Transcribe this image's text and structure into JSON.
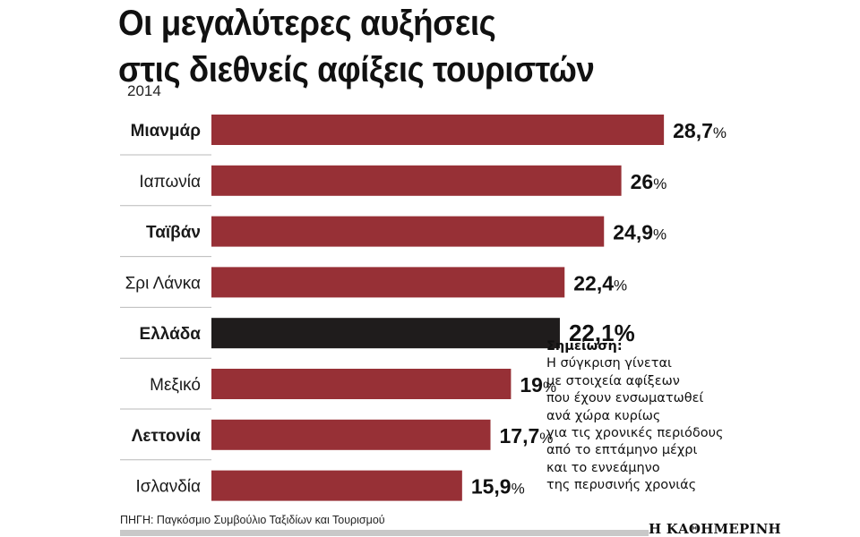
{
  "title_lines": [
    "Οι μεγαλύτερες αυξήσεις",
    "στις διεθνείς αφίξεις τουριστών"
  ],
  "subtitle": "2014",
  "chart_data": {
    "type": "bar",
    "orientation": "horizontal",
    "categories": [
      "Μιανμάρ",
      "Ιαπωνία",
      "Ταϊβάν",
      "Σρι Λάνκα",
      "Ελλάδα",
      "Μεξικό",
      "Λεττονία",
      "Ισλανδία"
    ],
    "values": [
      28.7,
      26,
      24.9,
      22.4,
      22.1,
      19,
      17.7,
      15.9
    ],
    "value_labels": [
      "28,7",
      "26",
      "24,9",
      "22,4",
      "22,1",
      "19",
      "17,7",
      "15,9"
    ],
    "unit": "%",
    "bold_categories": [
      "Μιανμάρ",
      "Ταϊβάν",
      "Ελλάδα",
      "Λεττονία"
    ],
    "highlight_category": "Ελλάδα",
    "bar_color": "#973036",
    "highlight_color": "#1f1c1c",
    "separator_color": "#b9b9b9",
    "title": "Οι μεγαλύτερες αυξήσεις στις διεθνείς αφίξεις τουριστών",
    "xlabel": "",
    "ylabel": ""
  },
  "note": {
    "heading": "Σημείωση:",
    "lines": [
      "Η σύγκριση γίνεται",
      "με στοιχεία αφίξεων",
      "που έχουν ενσωματωθεί",
      "ανά χώρα κυρίως",
      "για τις χρονικές περιόδους",
      "από το επτάμηνο μέχρι",
      "και το εννεάμηνο",
      "της περυσινής χρονιάς"
    ]
  },
  "source": "ΠΗΓΗ: Παγκόσμιο Συμβούλιο Ταξιδίων και Τουρισμού",
  "logo": "Η ΚΑΘΗΜΕΡΙΝΗ"
}
